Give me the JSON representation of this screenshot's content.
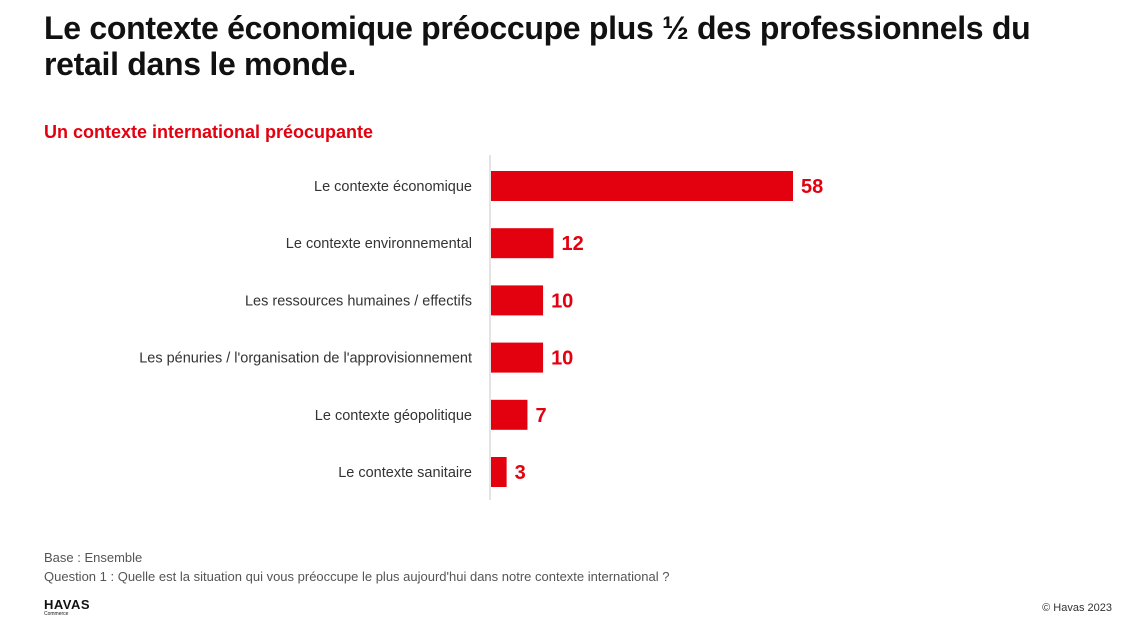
{
  "slide": {
    "title": "Le contexte économique préoccupe plus  ½ des professionnels du retail dans le monde.",
    "base": "Base : Ensemble",
    "question": "Question 1 : Quelle est la situation qui vous préoccupe le plus aujourd'hui dans notre contexte international ?",
    "brand_name": "HAVAS",
    "brand_sub": "Commerce",
    "copyright": "© Havas 2023"
  },
  "colors": {
    "bar": "#e3000f",
    "value_label": "#e3000f",
    "subtitle": "#e3000f",
    "axis": "#c8c8c8",
    "category_label": "#333333"
  },
  "chart_data": {
    "type": "bar",
    "orientation": "horizontal",
    "title": "Un contexte international préocupante",
    "categories": [
      "Le contexte économique",
      "Le contexte environnemental",
      "Les ressources humaines / effectifs",
      "Les pénuries / l'organisation de l'approvisionnement",
      "Le contexte géopolitique",
      "Le contexte sanitaire"
    ],
    "values": [
      58,
      12,
      10,
      10,
      7,
      3
    ],
    "xlim": [
      0,
      58
    ],
    "grid": false,
    "legend": "none",
    "data_labels": true
  }
}
